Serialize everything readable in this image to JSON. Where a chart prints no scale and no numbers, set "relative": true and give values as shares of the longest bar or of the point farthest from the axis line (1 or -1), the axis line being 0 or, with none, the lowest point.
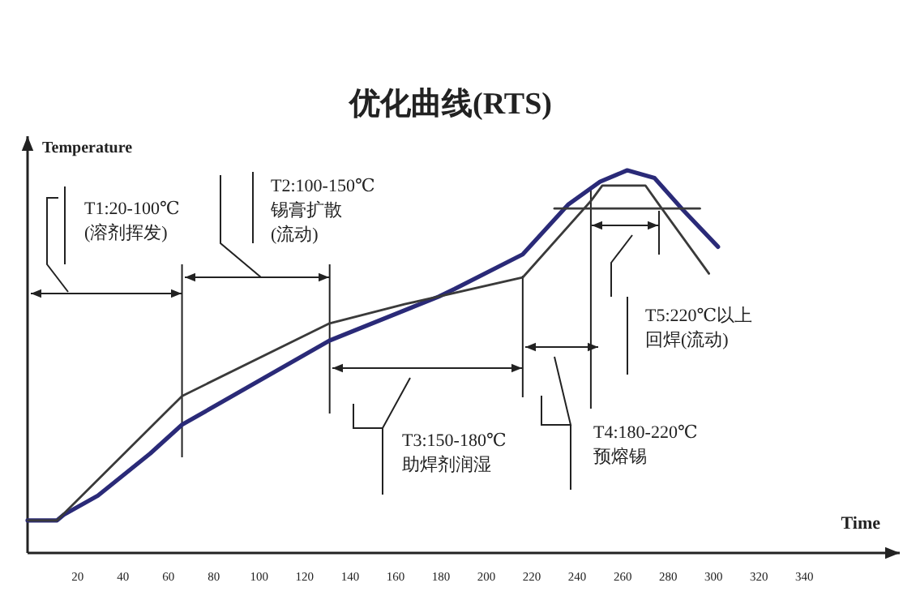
{
  "chart_data": {
    "type": "line",
    "title": "优化曲线(RTS)",
    "xlabel": "Time",
    "ylabel": "Temperature",
    "relative": true,
    "xlim": [
      -2,
      382
    ],
    "xticks": [
      20,
      40,
      60,
      80,
      100,
      120,
      140,
      160,
      180,
      200,
      220,
      240,
      260,
      280,
      300,
      320,
      340
    ],
    "series": [
      {
        "color": "#2a2a78",
        "x": [
          -2,
          11,
          14,
          29,
          52,
          66,
          131,
          179,
          186,
          216,
          236,
          250,
          262,
          274,
          286,
          302
        ],
        "values": [
          0.085,
          0.085,
          0.1,
          0.15,
          0.26,
          0.335,
          0.555,
          0.67,
          0.69,
          0.78,
          0.91,
          0.97,
          1.0,
          0.98,
          0.9,
          0.8
        ]
      },
      {
        "color": "#3a3a3a",
        "x": [
          -2,
          11,
          66,
          131,
          164,
          216,
          246,
          251,
          270,
          276,
          298
        ],
        "values": [
          0.085,
          0.085,
          0.41,
          0.6,
          0.65,
          0.72,
          0.92,
          0.96,
          0.96,
          0.91,
          0.73
        ]
      },
      {
        "color": "#3a3a3a",
        "x": [
          230,
          294
        ],
        "values": [
          0.9,
          0.9
        ]
      }
    ],
    "ref_lines": [
      {
        "axis": "x",
        "value": 66
      },
      {
        "axis": "x",
        "value": 131
      },
      {
        "axis": "x",
        "value": 216
      },
      {
        "axis": "x",
        "value": 246
      },
      {
        "axis": "x",
        "value": 276
      }
    ],
    "annotations": [
      "T1:20-100℃",
      "(溶剂挥发)",
      "T2:100-150℃",
      "锡膏扩散",
      "(流动)",
      "T3:150-180℃",
      "助焊剂润湿",
      "T4:180-220℃",
      "预熔锡",
      "T5:220℃以上",
      "回焊(流动)"
    ]
  }
}
